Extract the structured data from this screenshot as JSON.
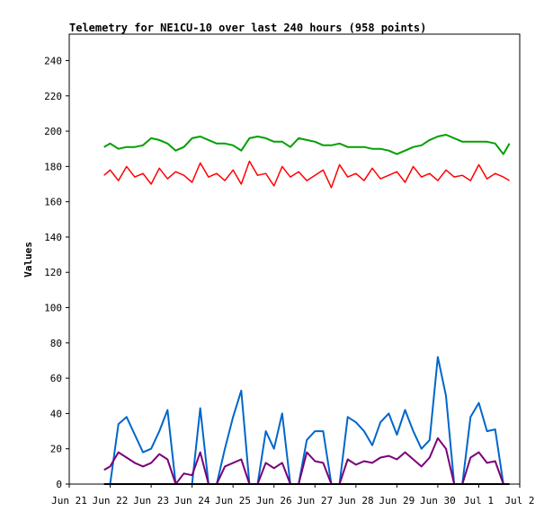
{
  "chart_data": {
    "type": "line",
    "title": "Telemetry for NE1CU-10 over last 240 hours (958 points)",
    "xlabel": "",
    "ylabel": "Values",
    "ylim": [
      0,
      255
    ],
    "yticks": [
      0,
      20,
      40,
      60,
      80,
      100,
      120,
      140,
      160,
      180,
      200,
      220,
      240
    ],
    "xticks": [
      "Jun 21",
      "Jun 22",
      "Jun 23",
      "Jun 24",
      "Jun 25",
      "Jun 26",
      "Jun 27",
      "Jun 28",
      "Jun 29",
      "Jun 30",
      "Jul 1",
      "Jul 2"
    ],
    "x_unit": "days since Jun 21 00:00",
    "grid": false,
    "series": [
      {
        "color": "#ff0000",
        "x": [
          0.85,
          1.0,
          1.2,
          1.4,
          1.6,
          1.8,
          2.0,
          2.2,
          2.4,
          2.6,
          2.8,
          3.0,
          3.2,
          3.4,
          3.6,
          3.8,
          4.0,
          4.2,
          4.4,
          4.6,
          4.8,
          5.0,
          5.2,
          5.4,
          5.6,
          5.8,
          6.0,
          6.2,
          6.4,
          6.6,
          6.8,
          7.0,
          7.2,
          7.4,
          7.6,
          7.8,
          8.0,
          8.2,
          8.4,
          8.6,
          8.8,
          9.0,
          9.2,
          9.4,
          9.6,
          9.8,
          10.0,
          10.2,
          10.4,
          10.6,
          10.75
        ],
        "y": [
          175,
          178,
          172,
          180,
          174,
          176,
          170,
          179,
          173,
          177,
          175,
          171,
          182,
          174,
          176,
          172,
          178,
          170,
          183,
          175,
          176,
          169,
          180,
          174,
          177,
          172,
          175,
          178,
          168,
          181,
          174,
          176,
          172,
          179,
          173,
          175,
          177,
          171,
          180,
          174,
          176,
          172,
          178,
          174,
          175,
          172,
          181,
          173,
          176,
          174,
          172
        ]
      },
      {
        "color": "#00a000",
        "x": [
          0.85,
          1.0,
          1.2,
          1.4,
          1.6,
          1.8,
          2.0,
          2.2,
          2.4,
          2.6,
          2.8,
          3.0,
          3.2,
          3.4,
          3.6,
          3.8,
          4.0,
          4.2,
          4.4,
          4.6,
          4.8,
          5.0,
          5.2,
          5.4,
          5.6,
          5.8,
          6.0,
          6.2,
          6.4,
          6.6,
          6.8,
          7.0,
          7.2,
          7.4,
          7.6,
          7.8,
          8.0,
          8.2,
          8.4,
          8.6,
          8.8,
          9.0,
          9.2,
          9.4,
          9.6,
          9.8,
          10.0,
          10.2,
          10.4,
          10.6,
          10.75
        ],
        "y": [
          191,
          193,
          190,
          191,
          191,
          192,
          196,
          195,
          193,
          189,
          191,
          196,
          197,
          195,
          193,
          193,
          192,
          189,
          196,
          197,
          196,
          194,
          194,
          191,
          196,
          195,
          194,
          192,
          192,
          193,
          191,
          191,
          191,
          190,
          190,
          189,
          187,
          189,
          191,
          192,
          195,
          197,
          198,
          196,
          194,
          194,
          194,
          194,
          193,
          187,
          193
        ]
      },
      {
        "color": "#0066cc",
        "x": [
          0.85,
          1.0,
          1.2,
          1.4,
          1.6,
          1.8,
          2.0,
          2.2,
          2.4,
          2.6,
          2.8,
          3.0,
          3.2,
          3.4,
          3.6,
          3.8,
          4.0,
          4.2,
          4.4,
          4.6,
          4.8,
          5.0,
          5.2,
          5.4,
          5.6,
          5.8,
          6.0,
          6.2,
          6.4,
          6.6,
          6.8,
          7.0,
          7.2,
          7.4,
          7.6,
          7.8,
          8.0,
          8.2,
          8.4,
          8.6,
          8.8,
          9.0,
          9.2,
          9.4,
          9.6,
          9.8,
          10.0,
          10.2,
          10.4,
          10.6,
          10.75
        ],
        "y": [
          0,
          0,
          34,
          38,
          28,
          18,
          20,
          30,
          42,
          0,
          0,
          0,
          43,
          0,
          0,
          20,
          38,
          53,
          0,
          0,
          30,
          20,
          40,
          0,
          0,
          25,
          30,
          30,
          0,
          0,
          38,
          35,
          30,
          22,
          35,
          40,
          28,
          42,
          30,
          20,
          25,
          72,
          50,
          0,
          0,
          38,
          46,
          30,
          31,
          0,
          0
        ]
      },
      {
        "color": "#7a007a",
        "x": [
          0.85,
          1.0,
          1.2,
          1.4,
          1.6,
          1.8,
          2.0,
          2.2,
          2.4,
          2.6,
          2.8,
          3.0,
          3.2,
          3.4,
          3.6,
          3.8,
          4.0,
          4.2,
          4.4,
          4.6,
          4.8,
          5.0,
          5.2,
          5.4,
          5.6,
          5.8,
          6.0,
          6.2,
          6.4,
          6.6,
          6.8,
          7.0,
          7.2,
          7.4,
          7.6,
          7.8,
          8.0,
          8.2,
          8.4,
          8.6,
          8.8,
          9.0,
          9.2,
          9.4,
          9.6,
          9.8,
          10.0,
          10.2,
          10.4,
          10.6,
          10.75
        ],
        "y": [
          8,
          10,
          18,
          15,
          12,
          10,
          12,
          17,
          14,
          0,
          6,
          5,
          18,
          0,
          0,
          10,
          12,
          14,
          0,
          0,
          12,
          9,
          12,
          0,
          0,
          18,
          13,
          12,
          0,
          0,
          14,
          11,
          13,
          12,
          15,
          16,
          14,
          18,
          14,
          10,
          15,
          26,
          20,
          0,
          0,
          15,
          18,
          12,
          13,
          0,
          0
        ]
      },
      {
        "color": "#000000",
        "x": [
          0.85,
          10.75
        ],
        "y": [
          0,
          0
        ]
      }
    ]
  }
}
